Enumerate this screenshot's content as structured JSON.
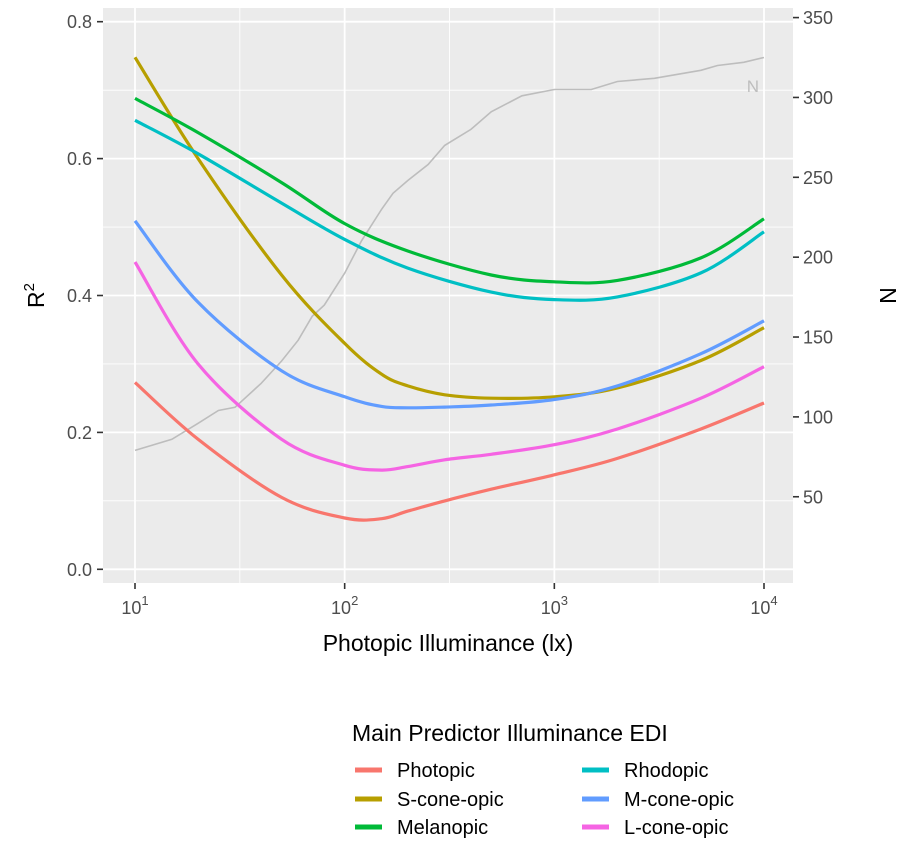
{
  "chart_data": {
    "type": "line",
    "x_scale": "log10",
    "xlabel": "Photopic Illuminance (lx)",
    "xlim": [
      10,
      10000
    ],
    "x_ticks": [
      10,
      100,
      1000,
      10000
    ],
    "x_tick_labels": [
      {
        "base": "10",
        "exp": "1"
      },
      {
        "base": "10",
        "exp": "2"
      },
      {
        "base": "10",
        "exp": "3"
      },
      {
        "base": "10",
        "exp": "4"
      }
    ],
    "ylabel": {
      "base": "R",
      "exp": "2"
    },
    "ylim": [
      -0.02,
      0.82
    ],
    "y_ticks": [
      0.0,
      0.2,
      0.4,
      0.6,
      0.8
    ],
    "y_tick_labels": [
      "0.0",
      "0.2",
      "0.4",
      "0.6",
      "0.8"
    ],
    "y2label": "N",
    "y2lim": [
      -4,
      356
    ],
    "y2_ticks": [
      50,
      100,
      150,
      200,
      250,
      300,
      350
    ],
    "y2_tick_labels": [
      "50",
      "100",
      "150",
      "200",
      "250",
      "300",
      "350"
    ],
    "grid": true,
    "legend_position": "bottom",
    "legend_title": "Main Predictor Illuminance EDI",
    "series": [
      {
        "name": "Photopic",
        "color": "#F8766D",
        "x": [
          10,
          20,
          50,
          100,
          150,
          200,
          300,
          500,
          1000,
          2000,
          5000,
          10000
        ],
        "y": [
          0.273,
          0.19,
          0.105,
          0.075,
          0.074,
          0.085,
          0.1,
          0.117,
          0.138,
          0.162,
          0.205,
          0.243
        ]
      },
      {
        "name": "S-cone-opic",
        "color": "#B79F00",
        "x": [
          10,
          20,
          50,
          100,
          150,
          200,
          300,
          500,
          1000,
          2000,
          5000,
          10000
        ],
        "y": [
          0.748,
          0.6,
          0.43,
          0.33,
          0.285,
          0.268,
          0.255,
          0.25,
          0.252,
          0.265,
          0.305,
          0.353
        ]
      },
      {
        "name": "Melanopic",
        "color": "#00BA38",
        "x": [
          10,
          20,
          50,
          100,
          200,
          500,
          1000,
          2000,
          5000,
          10000
        ],
        "y": [
          0.688,
          0.638,
          0.565,
          0.505,
          0.465,
          0.43,
          0.42,
          0.422,
          0.455,
          0.512
        ]
      },
      {
        "name": "Rhodopic",
        "color": "#00BFC4",
        "x": [
          10,
          20,
          50,
          100,
          200,
          500,
          1000,
          2000,
          5000,
          10000
        ],
        "y": [
          0.656,
          0.607,
          0.535,
          0.482,
          0.44,
          0.405,
          0.394,
          0.398,
          0.433,
          0.493
        ]
      },
      {
        "name": "M-cone-opic",
        "color": "#619CFF",
        "x": [
          10,
          20,
          50,
          100,
          150,
          200,
          300,
          500,
          1000,
          2000,
          5000,
          10000
        ],
        "y": [
          0.509,
          0.39,
          0.29,
          0.252,
          0.238,
          0.236,
          0.237,
          0.24,
          0.248,
          0.268,
          0.315,
          0.363
        ]
      },
      {
        "name": "L-cone-opic",
        "color": "#F564E3",
        "x": [
          10,
          20,
          50,
          100,
          150,
          200,
          300,
          500,
          1000,
          2000,
          5000,
          10000
        ],
        "y": [
          0.449,
          0.3,
          0.19,
          0.152,
          0.145,
          0.15,
          0.16,
          0.168,
          0.182,
          0.205,
          0.25,
          0.296
        ]
      }
    ],
    "n_series": {
      "label": "N",
      "color": "#BDBDBD",
      "x": [
        10,
        15,
        20,
        25,
        30,
        40,
        50,
        60,
        70,
        80,
        100,
        120,
        150,
        170,
        200,
        250,
        300,
        400,
        500,
        700,
        1000,
        1500,
        2000,
        3000,
        5000,
        6000,
        8000,
        10000
      ],
      "y": [
        79,
        86,
        96,
        104,
        106,
        121,
        135,
        148,
        163,
        170,
        190,
        210,
        230,
        240,
        248,
        258,
        270,
        280,
        291,
        301,
        305,
        305,
        310,
        312,
        317,
        320,
        322,
        325
      ]
    }
  }
}
